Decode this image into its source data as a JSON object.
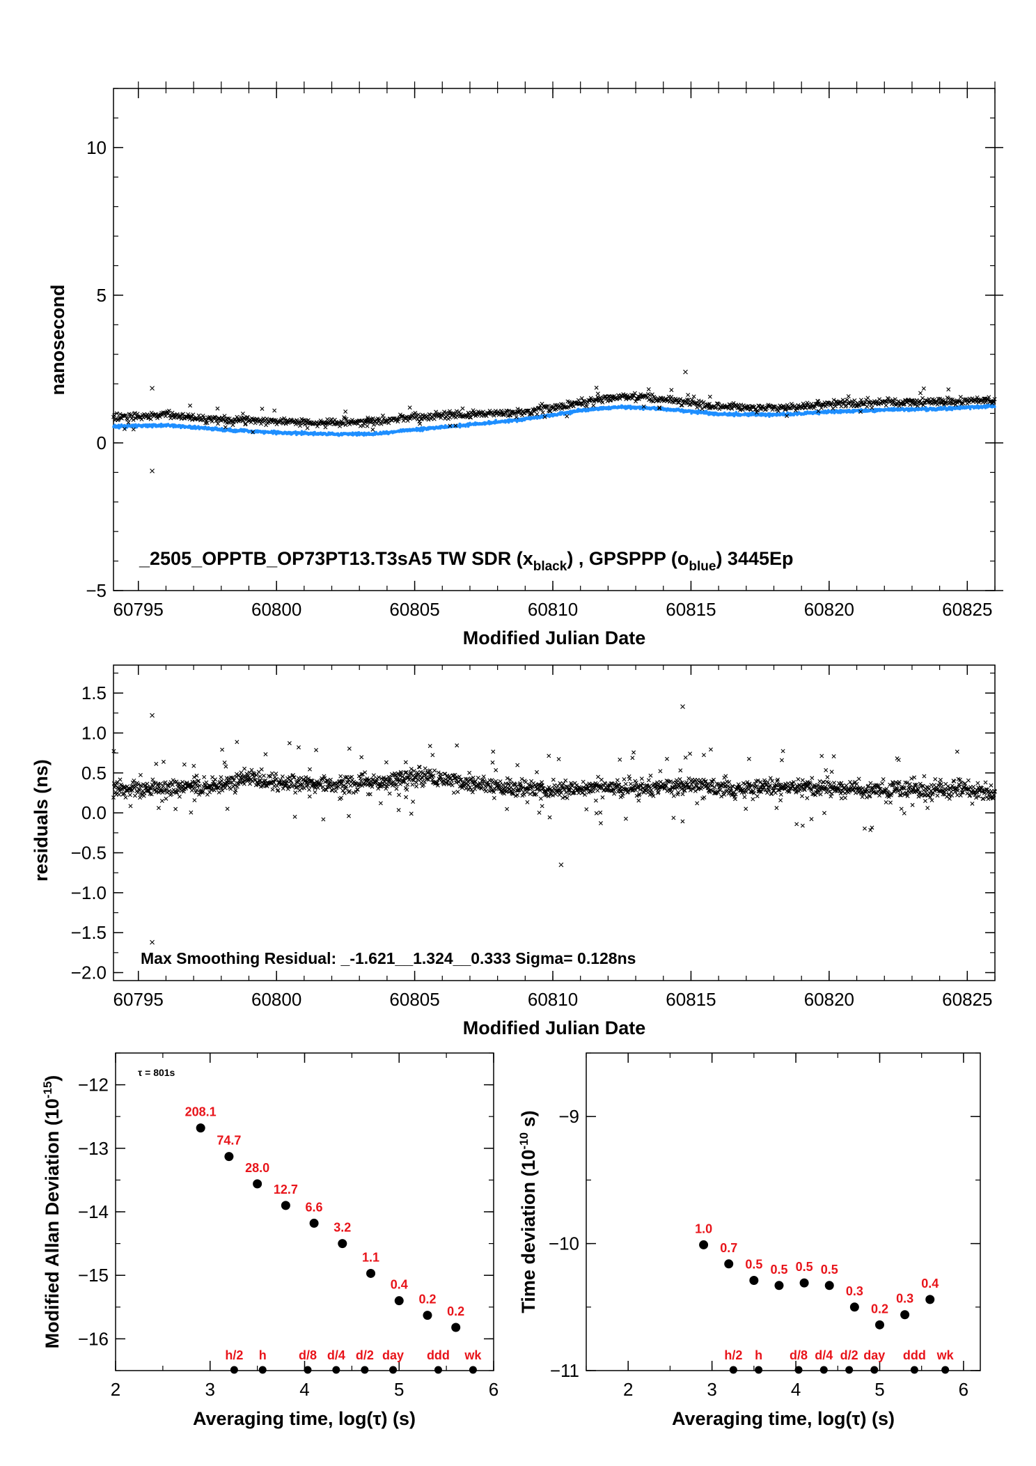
{
  "colors": {
    "black_series": "#000000",
    "blue_series": "#1f8fff",
    "red_labels": "#e8141a"
  },
  "chart_data": [
    {
      "type": "scatter",
      "id": "time_series",
      "title_parts": {
        "main": "_2505_OPPTB_OP73PT13.T3sA5     TW SDR (x",
        "sub1": "black",
        "mid": ") ,  GPSPPP (o",
        "sub2": "blue",
        "end": ")  3445Ep"
      },
      "xlabel": "Modified Julian Date",
      "ylabel": "nanosecond",
      "xlim": [
        60794.1,
        60826.0
      ],
      "ylim": [
        -5,
        12
      ],
      "x_ticks": [
        "60795",
        "60800",
        "60805",
        "60810",
        "60815",
        "60820",
        "60825"
      ],
      "y_ticks": [
        "−5",
        "0",
        "5",
        "10"
      ],
      "series": [
        {
          "name": "TW SDR",
          "marker": "x",
          "trend_x": [
            60794.1,
            60796,
            60798,
            60800,
            60802,
            60803.5,
            60805,
            60807,
            60809,
            60811,
            60812.5,
            60814,
            60816,
            60818,
            60820,
            60822,
            60824,
            60826
          ],
          "trend_y": [
            0.85,
            0.95,
            0.8,
            0.72,
            0.7,
            0.72,
            0.88,
            0.95,
            1.05,
            1.35,
            1.58,
            1.5,
            1.25,
            1.18,
            1.3,
            1.38,
            1.4,
            1.45
          ],
          "outliers_x": [
            60795.5,
            60795.5,
            60814.8
          ],
          "outliers_y": [
            -0.95,
            1.85,
            2.4
          ]
        },
        {
          "name": "GPSPPP",
          "marker": "o",
          "trend_x": [
            60794.1,
            60796,
            60798,
            60800,
            60802,
            60803.5,
            60805,
            60807,
            60809,
            60811,
            60812.5,
            60814,
            60816,
            60818,
            60820,
            60822,
            60824,
            60826
          ],
          "trend_y": [
            0.55,
            0.6,
            0.45,
            0.35,
            0.3,
            0.3,
            0.45,
            0.62,
            0.8,
            1.1,
            1.22,
            1.15,
            0.98,
            0.95,
            1.05,
            1.12,
            1.15,
            1.25
          ]
        }
      ]
    },
    {
      "type": "scatter",
      "id": "residuals",
      "annotation": "Max Smoothing Residual: _-1.621__1.324__0.333  Sigma= 0.128ns",
      "xlabel": "Modified Julian Date",
      "ylabel": "residuals (ns)",
      "xlim": [
        60794.1,
        60826.0
      ],
      "ylim": [
        -2.1,
        1.85
      ],
      "x_ticks": [
        "60795",
        "60800",
        "60805",
        "60810",
        "60815",
        "60820",
        "60825"
      ],
      "y_ticks": [
        "−2.0",
        "−1.5",
        "−1.0",
        "−0.5",
        "0.0",
        "0.5",
        "1.0",
        "1.5"
      ],
      "trend_x": [
        60794.1,
        60796,
        60798,
        60799,
        60800,
        60802,
        60804,
        60805,
        60806,
        60808,
        60810,
        60811,
        60813,
        60815,
        60817,
        60819,
        60821,
        60823,
        60825,
        60826
      ],
      "trend_y": [
        0.3,
        0.3,
        0.35,
        0.45,
        0.38,
        0.35,
        0.4,
        0.48,
        0.42,
        0.33,
        0.28,
        0.3,
        0.32,
        0.33,
        0.3,
        0.33,
        0.28,
        0.3,
        0.3,
        0.25
      ],
      "outliers_x": [
        60795.5,
        60795.5,
        60814.7,
        60810.3
      ],
      "outliers_y": [
        1.22,
        -1.62,
        1.33,
        -0.65
      ]
    },
    {
      "type": "scatter",
      "id": "mdev",
      "xlabel": "Averaging time, log(τ) (s)",
      "ylabel": "Modified Allan Deviation (10",
      "ylabel_sup": "-15",
      "ylabel_end": ")",
      "tau_note": "τ = 801s",
      "xlim": [
        2,
        6
      ],
      "ylim": [
        -16.5,
        -11.5
      ],
      "x_ticks": [
        "2",
        "3",
        "4",
        "5",
        "6"
      ],
      "y_ticks": [
        "−16",
        "−15",
        "−14",
        "−13",
        "−12"
      ],
      "x": [
        2.9,
        3.2,
        3.5,
        3.8,
        4.1,
        4.4,
        4.7,
        5.0,
        5.3,
        5.6
      ],
      "y": [
        -12.68,
        -13.13,
        -13.56,
        -13.9,
        -14.18,
        -14.5,
        -14.97,
        -15.4,
        -15.63,
        -15.82
      ],
      "point_labels": [
        "208.1",
        "74.7",
        "28.0",
        "12.7",
        "6.6",
        "3.2",
        "1.1",
        "0.4",
        "0.2",
        "0.2"
      ],
      "ref_x": [
        3.255,
        3.556,
        4.033,
        4.334,
        4.636,
        4.936,
        5.414,
        5.782
      ],
      "ref_labels": [
        "h/2",
        "h",
        "d/8",
        "d/4",
        "d/2",
        "day",
        "ddd",
        "wk"
      ]
    },
    {
      "type": "scatter",
      "id": "tdev",
      "xlabel": "Averaging time, log(τ) (s)",
      "ylabel": "Time deviation (10",
      "ylabel_sup": "-10",
      "ylabel_end": " s)",
      "xlim": [
        1.5,
        6.2
      ],
      "ylim": [
        -11,
        -8.5
      ],
      "x_ticks": [
        "2",
        "3",
        "4",
        "5",
        "6"
      ],
      "y_ticks": [
        "−11",
        "−10",
        "−9"
      ],
      "x": [
        2.9,
        3.2,
        3.5,
        3.8,
        4.1,
        4.4,
        4.7,
        5.0,
        5.3,
        5.6
      ],
      "y": [
        -10.01,
        -10.16,
        -10.29,
        -10.33,
        -10.31,
        -10.33,
        -10.5,
        -10.64,
        -10.56,
        -10.44
      ],
      "point_labels": [
        "1.0",
        "0.7",
        "0.5",
        "0.5",
        "0.5",
        "0.5",
        "0.3",
        "0.2",
        "0.3",
        "0.4"
      ],
      "ref_x": [
        3.255,
        3.556,
        4.033,
        4.334,
        4.636,
        4.936,
        5.414,
        5.782
      ],
      "ref_labels": [
        "h/2",
        "h",
        "d/8",
        "d/4",
        "d/2",
        "day",
        "ddd",
        "wk"
      ]
    }
  ]
}
